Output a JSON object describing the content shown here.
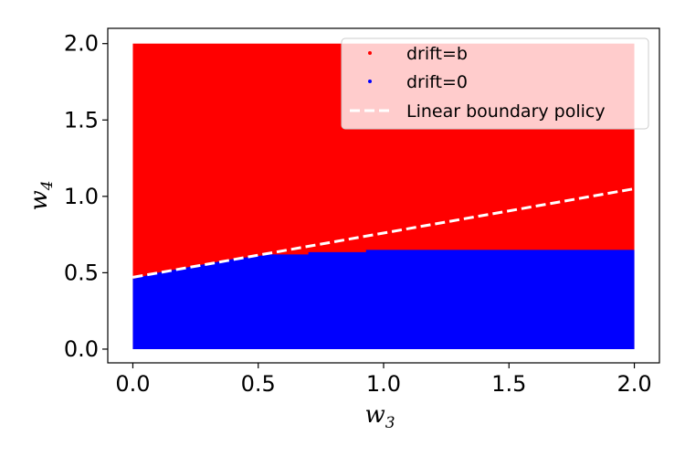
{
  "chart_data": {
    "type": "scatter",
    "title": "",
    "xlabel": "w",
    "xlabel_sub": "3",
    "ylabel": "w",
    "ylabel_sub": "4",
    "xlim": [
      -0.1,
      2.1
    ],
    "ylim": [
      -0.09,
      2.1
    ],
    "xticks": [
      0.0,
      0.5,
      1.0,
      1.5,
      2.0
    ],
    "xtick_labels": [
      "0.0",
      "0.5",
      "1.0",
      "1.5",
      "2.0"
    ],
    "yticks": [
      0.0,
      0.5,
      1.0,
      1.5,
      2.0
    ],
    "ytick_labels": [
      "0.0",
      "0.5",
      "1.0",
      "1.5",
      "2.0"
    ],
    "grid": false,
    "legend_position": "top-right",
    "series": [
      {
        "name": "drift=b",
        "color": "#ff0000",
        "marker": "point",
        "region": "grid points above the boundary (w3, w4 in [0, 2])"
      },
      {
        "name": "drift=0",
        "color": "#0000ff",
        "marker": "point",
        "boundary": [
          [
            0.0,
            0.46
          ],
          [
            0.1,
            0.5
          ],
          [
            0.2,
            0.53
          ],
          [
            0.3,
            0.56
          ],
          [
            0.4,
            0.59
          ],
          [
            0.5,
            0.61
          ],
          [
            0.55,
            0.62
          ],
          [
            0.7,
            0.62
          ],
          [
            0.7,
            0.635
          ],
          [
            0.93,
            0.635
          ],
          [
            0.93,
            0.65
          ],
          [
            2.0,
            0.65
          ]
        ]
      },
      {
        "name": "Linear boundary policy",
        "color": "#ffffff",
        "style": "dashed",
        "x": [
          0.0,
          2.0
        ],
        "y": [
          0.47,
          1.05
        ]
      }
    ]
  }
}
